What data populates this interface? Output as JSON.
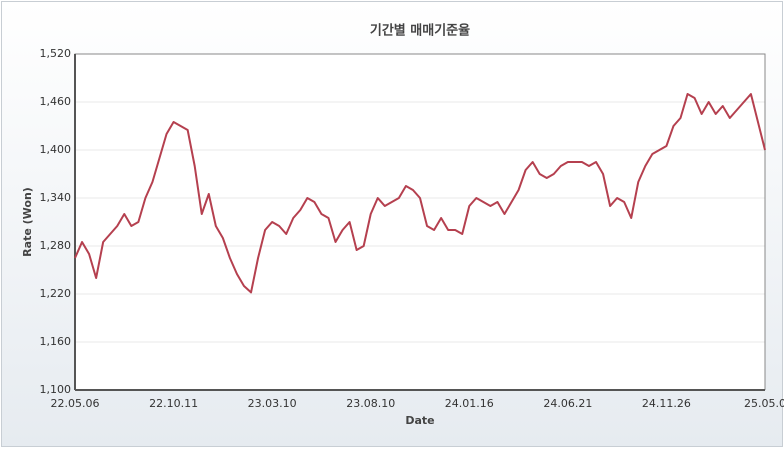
{
  "chart_data": {
    "type": "line",
    "title": "기간별 매매기준율",
    "x_label": "Date",
    "y_label": "Rate (Won)",
    "categories": [
      "22.05.06",
      null,
      null,
      null,
      null,
      null,
      null,
      null,
      null,
      null,
      null,
      null,
      null,
      null,
      "22.10.11",
      null,
      null,
      null,
      null,
      null,
      null,
      null,
      null,
      null,
      null,
      null,
      null,
      null,
      "23.03.10",
      null,
      null,
      null,
      null,
      null,
      null,
      null,
      null,
      null,
      null,
      null,
      null,
      null,
      "23.08.10",
      null,
      null,
      null,
      null,
      null,
      null,
      null,
      null,
      null,
      null,
      null,
      null,
      null,
      "24.01.16",
      null,
      null,
      null,
      null,
      null,
      null,
      null,
      null,
      null,
      null,
      null,
      null,
      null,
      "24.06.21",
      null,
      null,
      null,
      null,
      null,
      null,
      null,
      null,
      null,
      null,
      null,
      null,
      null,
      "24.11.26",
      null,
      null,
      null,
      null,
      null,
      null,
      null,
      null,
      null,
      null,
      null,
      null,
      null,
      "25.05.0"
    ],
    "series": [
      {
        "name": "Rate",
        "color": "#b5404f",
        "values": [
          1265,
          1285,
          1270,
          1240,
          1285,
          1295,
          1305,
          1320,
          1305,
          1310,
          1340,
          1360,
          1390,
          1420,
          1435,
          1430,
          1425,
          1380,
          1320,
          1345,
          1305,
          1290,
          1265,
          1245,
          1230,
          1222,
          1265,
          1300,
          1310,
          1305,
          1295,
          1315,
          1325,
          1340,
          1335,
          1320,
          1315,
          1285,
          1300,
          1310,
          1275,
          1280,
          1320,
          1340,
          1330,
          1335,
          1340,
          1355,
          1350,
          1340,
          1305,
          1300,
          1315,
          1300,
          1300,
          1295,
          1330,
          1340,
          1335,
          1330,
          1335,
          1320,
          1335,
          1350,
          1375,
          1385,
          1370,
          1365,
          1370,
          1380,
          1385,
          1385,
          1385,
          1380,
          1385,
          1370,
          1330,
          1340,
          1335,
          1315,
          1360,
          1380,
          1395,
          1400,
          1405,
          1430,
          1440,
          1470,
          1465,
          1445,
          1460,
          1445,
          1455,
          1440,
          1450,
          1460,
          1470,
          1435,
          1400
        ]
      }
    ],
    "ylim": [
      1100,
      1520
    ],
    "yticks": [
      {
        "value": 1100,
        "label": "1,100"
      },
      {
        "value": 1160,
        "label": "1,160"
      },
      {
        "value": 1220,
        "label": "1,220"
      },
      {
        "value": 1280,
        "label": "1,280"
      },
      {
        "value": 1340,
        "label": "1,340"
      },
      {
        "value": 1400,
        "label": "1,400"
      },
      {
        "value": 1460,
        "label": "1,460"
      },
      {
        "value": 1520,
        "label": "1,520"
      }
    ],
    "grid": true
  }
}
